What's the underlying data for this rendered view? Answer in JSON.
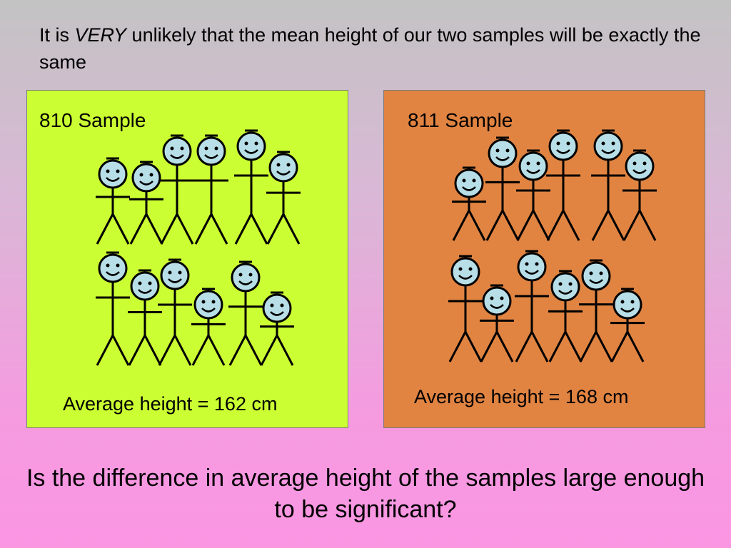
{
  "intro": {
    "prefix": "It is ",
    "emphasis": "VERY",
    "rest": " unlikely that the mean height of our two samples will be exactly the same"
  },
  "panels": [
    {
      "title": "810 Sample",
      "average_text": "Average height = 162 cm",
      "background": "#ccff33",
      "figure_count": 12
    },
    {
      "title": "811 Sample",
      "average_text": "Average height = 168 cm",
      "background": "#e18442",
      "figure_count": 12
    }
  ],
  "question": "Is the difference in average height of the samples large enough to be significant?",
  "colors": {
    "face": "#b8dfe8",
    "figure_stroke": "#000000"
  }
}
